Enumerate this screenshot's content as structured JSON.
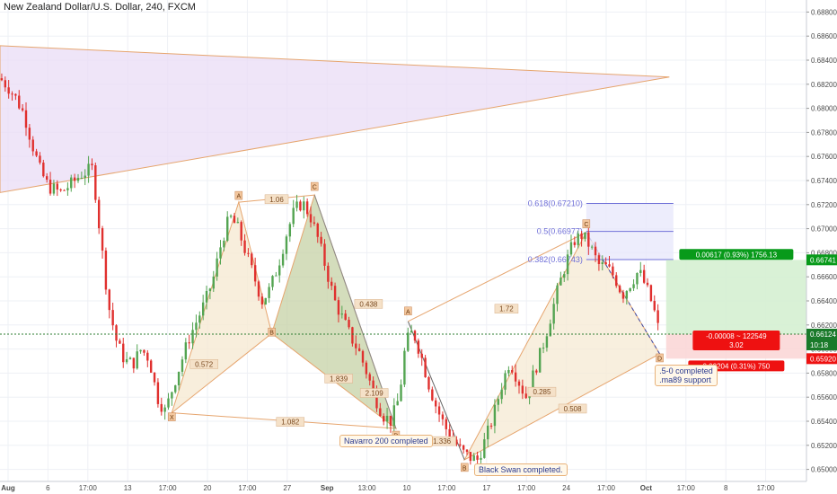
{
  "title": "New Zealand Dollar/U.S. Dollar, 240, FXCM",
  "colors": {
    "up": "#53a451",
    "down": "#e0302e",
    "grid": "#eef0f5",
    "axis_text": "#4a4a4a",
    "pattern_stroke": "#e6a56e",
    "pattern_fill_light": "#f6ead3",
    "pattern_fill_green": "#c5d2a6",
    "triangle_fill": "#eadcf6",
    "fib_stroke": "#6f6fd8",
    "fib_fill": "#e8e8fb",
    "target_fill": "#d5efd1",
    "stop_fill": "#fbd7d7",
    "label_green": "#089a1a",
    "label_red": "#ee1111"
  },
  "chart_data": {
    "type": "candlestick",
    "symbol": "New Zealand Dollar/U.S. Dollar",
    "interval": "240",
    "source": "FXCM",
    "x_ticks": [
      "Aug",
      "6",
      "17:00",
      "13",
      "17:00",
      "20",
      "17:00",
      "27",
      "Sep",
      "13:00",
      "10",
      "17:00",
      "17",
      "17:00",
      "24",
      "17:00",
      "Oct",
      "17:00",
      "8",
      "17:00"
    ],
    "y_ticks": [
      "0.68800",
      "0.68600",
      "0.68400",
      "0.68200",
      "0.68000",
      "0.67800",
      "0.67600",
      "0.67400",
      "0.67200",
      "0.67000",
      "0.66800",
      "0.66600",
      "0.66400",
      "0.66200",
      "0.66000",
      "0.65800",
      "0.65600",
      "0.65400",
      "0.65200",
      "0.65000"
    ],
    "ylim": [
      0.649,
      0.689
    ],
    "close_path": [
      [
        0.0,
        0.6825
      ],
      [
        0.01,
        0.6818
      ],
      [
        0.02,
        0.6808
      ],
      [
        0.03,
        0.6795
      ],
      [
        0.04,
        0.677
      ],
      [
        0.05,
        0.6748
      ],
      [
        0.06,
        0.6735
      ],
      [
        0.075,
        0.673
      ],
      [
        0.09,
        0.6738
      ],
      [
        0.1,
        0.6745
      ],
      [
        0.115,
        0.675
      ],
      [
        0.125,
        0.669
      ],
      [
        0.135,
        0.6635
      ],
      [
        0.145,
        0.6605
      ],
      [
        0.155,
        0.659
      ],
      [
        0.165,
        0.6588
      ],
      [
        0.175,
        0.66
      ],
      [
        0.185,
        0.6592
      ],
      [
        0.195,
        0.656
      ],
      [
        0.205,
        0.6548
      ],
      [
        0.215,
        0.657
      ],
      [
        0.225,
        0.659
      ],
      [
        0.235,
        0.661
      ],
      [
        0.245,
        0.6625
      ],
      [
        0.255,
        0.664
      ],
      [
        0.265,
        0.666
      ],
      [
        0.275,
        0.669
      ],
      [
        0.285,
        0.671
      ],
      [
        0.295,
        0.67
      ],
      [
        0.305,
        0.668
      ],
      [
        0.315,
        0.666
      ],
      [
        0.325,
        0.664
      ],
      [
        0.335,
        0.665
      ],
      [
        0.345,
        0.667
      ],
      [
        0.355,
        0.6695
      ],
      [
        0.365,
        0.6715
      ],
      [
        0.375,
        0.6722
      ],
      [
        0.385,
        0.671
      ],
      [
        0.395,
        0.669
      ],
      [
        0.405,
        0.6665
      ],
      [
        0.415,
        0.664
      ],
      [
        0.425,
        0.6625
      ],
      [
        0.435,
        0.661
      ],
      [
        0.445,
        0.6598
      ],
      [
        0.455,
        0.658
      ],
      [
        0.465,
        0.656
      ],
      [
        0.475,
        0.6545
      ],
      [
        0.485,
        0.654
      ],
      [
        0.495,
        0.656
      ],
      [
        0.503,
        0.6605
      ],
      [
        0.512,
        0.6615
      ],
      [
        0.522,
        0.6595
      ],
      [
        0.532,
        0.657
      ],
      [
        0.542,
        0.655
      ],
      [
        0.552,
        0.6535
      ],
      [
        0.562,
        0.6525
      ],
      [
        0.572,
        0.6515
      ],
      [
        0.582,
        0.651
      ],
      [
        0.592,
        0.6508
      ],
      [
        0.602,
        0.6525
      ],
      [
        0.612,
        0.6545
      ],
      [
        0.622,
        0.657
      ],
      [
        0.632,
        0.659
      ],
      [
        0.642,
        0.6575
      ],
      [
        0.652,
        0.656
      ],
      [
        0.662,
        0.658
      ],
      [
        0.672,
        0.66
      ],
      [
        0.682,
        0.6625
      ],
      [
        0.692,
        0.665
      ],
      [
        0.702,
        0.6672
      ],
      [
        0.712,
        0.669
      ],
      [
        0.722,
        0.6695
      ],
      [
        0.732,
        0.6685
      ],
      [
        0.742,
        0.667
      ],
      [
        0.752,
        0.6668
      ],
      [
        0.762,
        0.666
      ],
      [
        0.772,
        0.6645
      ],
      [
        0.782,
        0.6655
      ],
      [
        0.792,
        0.6665
      ],
      [
        0.802,
        0.665
      ],
      [
        0.81,
        0.6635
      ],
      [
        0.818,
        0.6612
      ]
    ],
    "current_price": "0.66124",
    "horizontal_line_price": 0.66124,
    "purple_triangle": {
      "left_top": [
        0.0,
        0.6852
      ],
      "left_bottom": [
        0.0,
        0.673
      ],
      "apex": [
        0.83,
        0.6826
      ]
    },
    "pattern_1": {
      "points": {
        "X": [
          0.213,
          0.6547
        ],
        "A": [
          0.296,
          0.6722
        ],
        "B": [
          0.337,
          0.6613
        ],
        "C": [
          0.39,
          0.6728
        ],
        "D": [
          0.491,
          0.6534
        ]
      },
      "labels": [
        "X",
        "A",
        "B",
        "C",
        "D"
      ],
      "ratios": {
        "XA_B": "0.572",
        "AB_C": "1.06",
        "BC_D": "1.839",
        "XD": "1.082",
        "B_D": "0.438",
        "CD": "2.109"
      }
    },
    "pattern_2": {
      "points": {
        "A": [
          0.506,
          0.6623
        ],
        "B": [
          0.576,
          0.6508
        ],
        "C": [
          0.727,
          0.6697
        ],
        "D": [
          0.818,
          0.6596
        ]
      },
      "labels": [
        "A",
        "B",
        "C",
        "D"
      ],
      "ratios": {
        "AB": "1.72",
        "BD": "1.336",
        "mid": "0.285",
        "CD": "0.508"
      }
    },
    "fib_levels": [
      {
        "label": "0.618(0.67210)",
        "price": 0.6721
      },
      {
        "label": "0.5(0.66977)",
        "price": 0.66977
      },
      {
        "label": "0.382(0.66743)",
        "price": 0.66743
      }
    ],
    "position": {
      "entry": 0.66124,
      "target": 0.66741,
      "stop": 0.6592,
      "target_label": "0.00617 (0.93%) 1756.13",
      "current_label_line1": "-0.00008 ~ 122549",
      "current_label_line2": "3.02",
      "stop_label": "0.00204 (0.31%) 750"
    },
    "price_tags": [
      "0.66741",
      "0.66124",
      "10:18",
      "0.65920"
    ],
    "annotations": [
      "Navarro 200 completed",
      "Black Swan completed.",
      ".5-0 completed\n.ma89 support"
    ]
  }
}
